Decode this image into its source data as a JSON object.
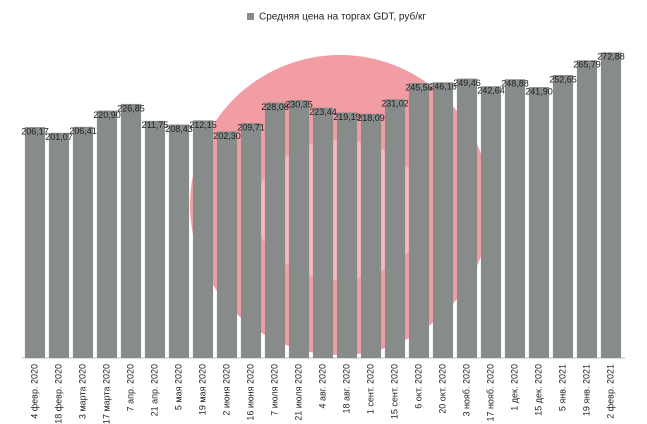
{
  "chart_data": {
    "type": "bar",
    "series": [
      {
        "name": "Средняя цена на торгах GDT, руб/кг",
        "color": "#878b89",
        "values": [
          206.17,
          201.07,
          206.41,
          220.9,
          226.85,
          211.75,
          208.43,
          212.15,
          202.3,
          209.71,
          228.08,
          230.35,
          223.44,
          219.19,
          218.09,
          231.02,
          245.56,
          246.16,
          249.46,
          242.64,
          248.88,
          241.9,
          252.65,
          265.79,
          272.88
        ],
        "value_labels": [
          "206,17",
          "201,07",
          "206,41",
          "220,90",
          "226,85",
          "211,75",
          "208,43",
          "212,15",
          "202,30",
          "209,71",
          "228,08",
          "230,35",
          "223,44",
          "219,19",
          "218,09",
          "231,02",
          "245,56",
          "246,16",
          "249,46",
          "242,64",
          "248,88",
          "241,90",
          "252,65",
          "265,79",
          "272,88"
        ]
      }
    ],
    "categories": [
      "4 февр. 2020",
      "18 февр. 2020",
      "3 марта 2020",
      "17 марта 2020",
      "7 апр. 2020",
      "21 апр. 2020",
      "5 мая 2020",
      "19 мая 2020",
      "2 июня 2020",
      "16 июня 2020",
      "7 июля 2020",
      "21 июля 2020",
      "4 авг. 2020",
      "18 авг. 2020",
      "1 сент. 2020",
      "15 сент. 2020",
      "6 окт. 2020",
      "20 окт. 2020",
      "3 нояб. 2020",
      "17 нояб. 2020",
      "1 дек. 2020",
      "15 дек. 2020",
      "5 янв. 2021",
      "19 янв. 2021",
      "2 февр. 2021"
    ],
    "ylim": [
      0,
      300
    ],
    "legend": "top"
  }
}
